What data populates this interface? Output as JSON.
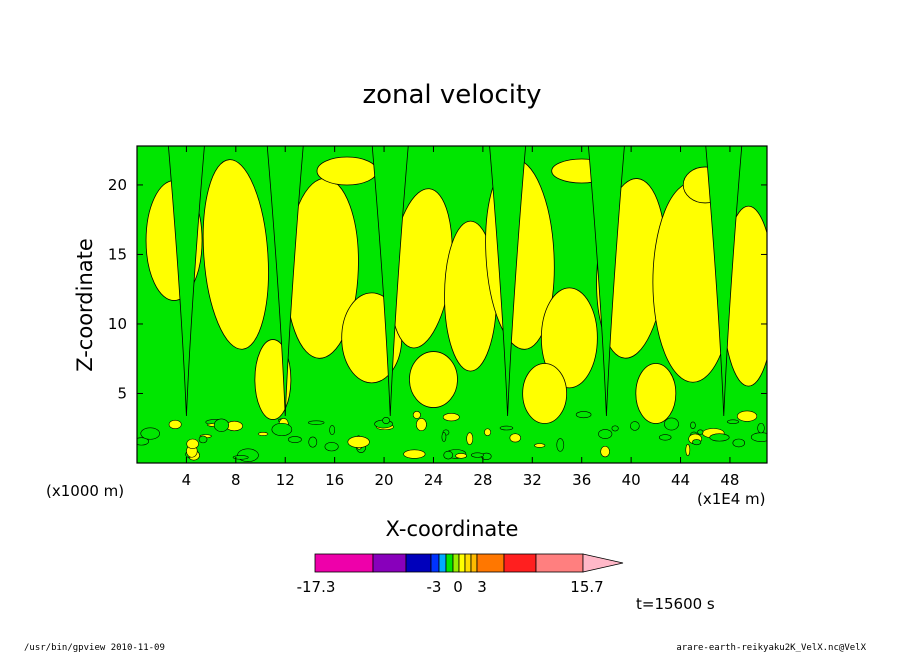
{
  "chart_data": {
    "type": "heatmap",
    "title": "zonal velocity",
    "xlabel": "X-coordinate",
    "ylabel": "Z-coordinate",
    "x_unit_label": "(x1E4 m)",
    "y_unit_label": "(x1000 m)",
    "xlim": [
      0,
      51
    ],
    "ylim": [
      0,
      22.8
    ],
    "x_ticks": [
      4,
      8,
      12,
      16,
      20,
      24,
      28,
      32,
      36,
      40,
      44,
      48
    ],
    "y_ticks": [
      5,
      10,
      15,
      20
    ],
    "grid": false,
    "colors": {
      "positive_weak": "#ffff00",
      "negative_weak": "#00e600",
      "contour_line": "#000000"
    },
    "colorbar": {
      "min": -17.3,
      "max": 15.7,
      "tick_labels": [
        "-17.3",
        "-3",
        "0",
        "3",
        "15.7"
      ],
      "colors": [
        "#ee00aa",
        "#8800bb",
        "#0000bb",
        "#0033ff",
        "#00aaff",
        "#00e600",
        "#99ee00",
        "#ffff00",
        "#ffdd00",
        "#ffbb00",
        "#ff7700",
        "#ff1f1f",
        "#ff7f7f"
      ],
      "extend_color": "#ffb8c8",
      "orientation": "horizontal",
      "placement": "bottom"
    },
    "annotation": "t=15600 s"
  },
  "footer": {
    "left": "/usr/bin/gpview  2010-11-09",
    "right": "arare-earth-reikyaku2K_VelX.nc@VelX"
  }
}
